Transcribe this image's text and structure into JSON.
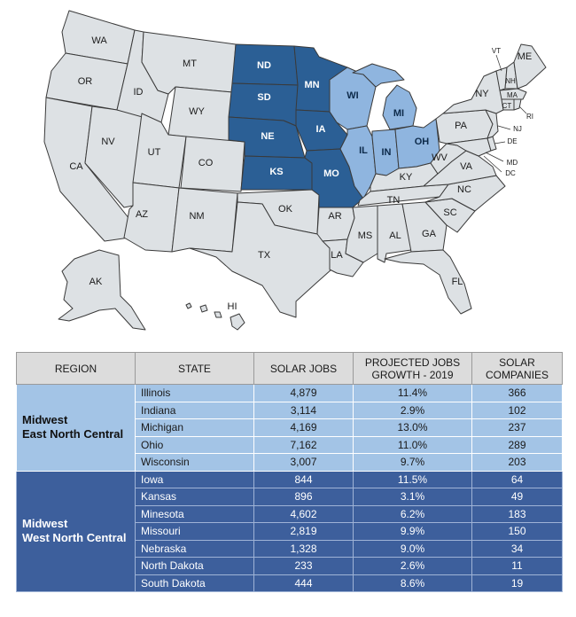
{
  "colors": {
    "default_state": "#dde1e4",
    "west_north_central": "#2b5f95",
    "east_north_central": "#8fb5df",
    "header_bg": "#dcdcdc",
    "east_row": "#a3c4e6",
    "west_row": "#3d5f9c"
  },
  "map_labels": {
    "WA": "WA",
    "OR": "OR",
    "CA": "CA",
    "NV": "NV",
    "ID": "ID",
    "MT": "MT",
    "WY": "WY",
    "UT": "UT",
    "CO": "CO",
    "AZ": "AZ",
    "NM": "NM",
    "TX": "TX",
    "OK": "OK",
    "KS": "KS",
    "NE": "NE",
    "SD": "SD",
    "ND": "ND",
    "MN": "MN",
    "IA": "IA",
    "MO": "MO",
    "AR": "AR",
    "LA": "LA",
    "WI": "WI",
    "IL": "IL",
    "MI": "MI",
    "IN": "IN",
    "OH": "OH",
    "KY": "KY",
    "TN": "TN",
    "MS": "MS",
    "AL": "AL",
    "GA": "GA",
    "FL": "FL",
    "SC": "SC",
    "NC": "NC",
    "VA": "VA",
    "WV": "WV",
    "PA": "PA",
    "NY": "NY",
    "VT": "VT",
    "NH": "NH",
    "ME": "ME",
    "MA": "MA",
    "CT": "CT",
    "RI": "RI",
    "NJ": "NJ",
    "DE": "DE",
    "MD": "MD",
    "DC": "DC",
    "AK": "AK",
    "HI": "HI"
  },
  "table": {
    "headers": {
      "region": "REGION",
      "state": "STATE",
      "jobs": "SOLAR JOBS",
      "growth_line1": "PROJECTED JOBS",
      "growth_line2": "GROWTH - 2019",
      "companies_line1": "SOLAR",
      "companies_line2": "COMPANIES"
    },
    "regions": [
      {
        "line1": "Midwest",
        "line2": "East North Central",
        "rows": [
          {
            "state": "Illinois",
            "jobs": "4,879",
            "growth": "11.4%",
            "companies": "366"
          },
          {
            "state": "Indiana",
            "jobs": "3,114",
            "growth": "2.9%",
            "companies": "102"
          },
          {
            "state": "Michigan",
            "jobs": "4,169",
            "growth": "13.0%",
            "companies": "237"
          },
          {
            "state": "Ohio",
            "jobs": "7,162",
            "growth": "11.0%",
            "companies": "289"
          },
          {
            "state": "Wisconsin",
            "jobs": "3,007",
            "growth": "9.7%",
            "companies": "203"
          }
        ]
      },
      {
        "line1": "Midwest",
        "line2": "West North Central",
        "rows": [
          {
            "state": "Iowa",
            "jobs": "844",
            "growth": "11.5%",
            "companies": "64"
          },
          {
            "state": "Kansas",
            "jobs": "896",
            "growth": "3.1%",
            "companies": "49"
          },
          {
            "state": "Minesota",
            "jobs": "4,602",
            "growth": "6.2%",
            "companies": "183"
          },
          {
            "state": "Missouri",
            "jobs": "2,819",
            "growth": "9.9%",
            "companies": "150"
          },
          {
            "state": "Nebraska",
            "jobs": "1,328",
            "growth": "9.0%",
            "companies": "34"
          },
          {
            "state": "North Dakota",
            "jobs": "233",
            "growth": "2.6%",
            "companies": "11"
          },
          {
            "state": "South Dakota",
            "jobs": "444",
            "growth": "8.6%",
            "companies": "19"
          }
        ]
      }
    ]
  }
}
